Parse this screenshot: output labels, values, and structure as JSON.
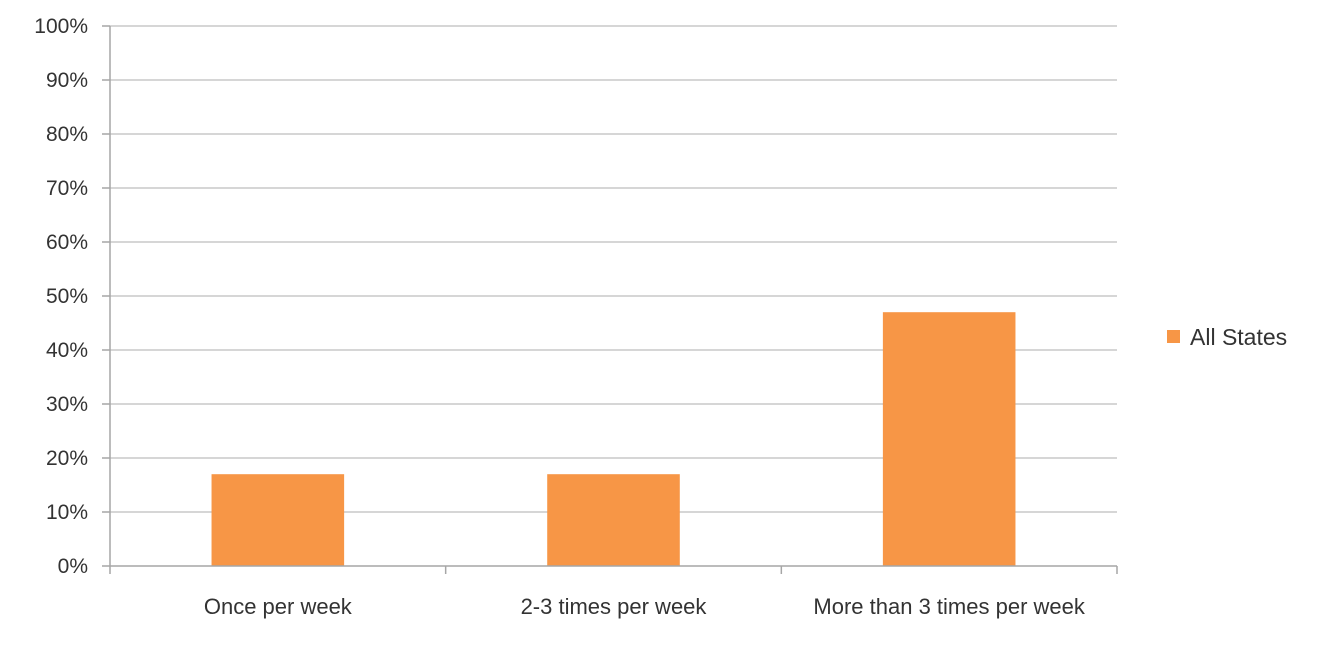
{
  "chart_data": {
    "type": "bar",
    "title": "",
    "xlabel": "",
    "ylabel": "",
    "categories": [
      "Once per week",
      "2-3 times per week",
      "More than 3 times per week"
    ],
    "series": [
      {
        "name": "All States",
        "values": [
          0.17,
          0.17,
          0.47
        ],
        "color": "#f79646"
      }
    ],
    "ylim": [
      0,
      1
    ],
    "yticks": [
      0,
      0.1,
      0.2,
      0.3,
      0.4,
      0.5,
      0.6,
      0.7,
      0.8,
      0.9,
      1.0
    ],
    "ytick_labels": [
      "0%",
      "10%",
      "20%",
      "30%",
      "40%",
      "50%",
      "60%",
      "70%",
      "80%",
      "90%",
      "100%"
    ],
    "grid": true,
    "legend": "right"
  }
}
